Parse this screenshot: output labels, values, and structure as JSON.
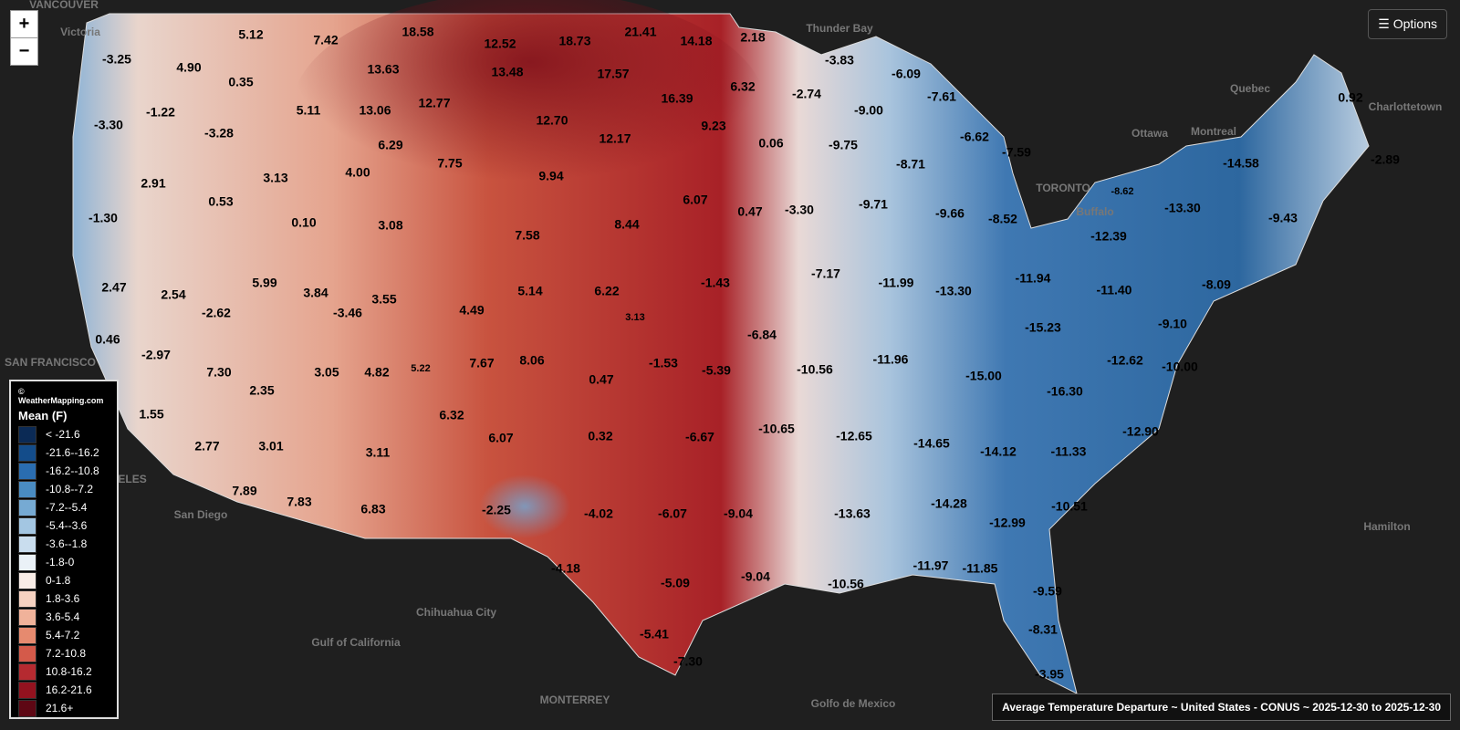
{
  "controls": {
    "zoom_in": "+",
    "zoom_out": "−",
    "options": "☰ Options"
  },
  "legend": {
    "credit": "© WeatherMapping.com",
    "title": "Mean (F)",
    "entries": [
      {
        "label": "< -21.6",
        "color": "#0b2a55"
      },
      {
        "label": "-21.6--16.2",
        "color": "#134c8a"
      },
      {
        "label": "-16.2--10.8",
        "color": "#2a6db0"
      },
      {
        "label": "-10.8--7.2",
        "color": "#4a8cc2"
      },
      {
        "label": "-7.2--5.4",
        "color": "#76aad3"
      },
      {
        "label": "-5.4--3.6",
        "color": "#a3c6e2"
      },
      {
        "label": "-3.6--1.8",
        "color": "#c9ddee"
      },
      {
        "label": "-1.8-0",
        "color": "#eaf1f7"
      },
      {
        "label": "0-1.8",
        "color": "#f8ece6"
      },
      {
        "label": "1.8-3.6",
        "color": "#f6d2c1"
      },
      {
        "label": "3.6-5.4",
        "color": "#f0b29a"
      },
      {
        "label": "5.4-7.2",
        "color": "#e68a6f"
      },
      {
        "label": "7.2-10.8",
        "color": "#d45a4a"
      },
      {
        "label": "10.8-16.2",
        "color": "#b52a30"
      },
      {
        "label": "16.2-21.6",
        "color": "#93121f"
      },
      {
        "label": "21.6+",
        "color": "#5e0714"
      }
    ]
  },
  "title": "Average Temperature Departure ~ United States - CONUS ~ 2025-12-30 to 2025-12-30",
  "places": [
    "VANCOUVER",
    "Victoria",
    "Thunder Bay",
    "Quebec",
    "Charlottetown",
    "Montreal",
    "Ottawa",
    "TORONTO",
    "Buffalo",
    "SAN FRANCISCO",
    "LOS ANGELES",
    "San Diego",
    "Chihuahua City",
    "Gulf of California",
    "MONTERREY",
    "Golfo de Mexico",
    "Hamilton"
  ],
  "stations": [
    "5.12",
    "7.42",
    "18.58",
    "12.52",
    "18.73",
    "21.41",
    "14.18",
    "2.18",
    "-3.25",
    "4.90",
    "13.63",
    "13.48",
    "17.57",
    "-3.83",
    "-6.09",
    "0.35",
    "6.32",
    "-2.74",
    "-7.61",
    "0.92",
    "-3.30",
    "-1.22",
    "5.11",
    "13.06",
    "12.77",
    "16.39",
    "-9.00",
    "-3.28",
    "12.70",
    "9.23",
    "-6.62",
    "6.29",
    "12.17",
    "0.06",
    "-9.75",
    "-7.59",
    "-14.58",
    "-2.89",
    "3.13",
    "4.00",
    "7.75",
    "-8.71",
    "2.91",
    "9.94",
    "-8.62",
    "0.53",
    "6.07",
    "0.47",
    "-3.30",
    "-9.71",
    "-9.66",
    "-8.52",
    "-13.30",
    "-9.43",
    "-1.30",
    "0.10",
    "3.08",
    "8.44",
    "7.58",
    "-12.39",
    "2.47",
    "2.54",
    "5.99",
    "3.84",
    "3.55",
    "5.14",
    "6.22",
    "-1.43",
    "-7.17",
    "-11.99",
    "-13.30",
    "-11.94",
    "-11.40",
    "-8.09",
    "-2.62",
    "-3.46",
    "4.49",
    "3.13",
    "-15.23",
    "-9.10",
    "0.46",
    "-6.84",
    "-2.97",
    "7.67",
    "8.06",
    "-1.53",
    "-11.96",
    "-12.62",
    "-10.00",
    "7.30",
    "3.05",
    "4.82",
    "5.22",
    "0.47",
    "-5.39",
    "-10.56",
    "-15.00",
    "2.35",
    "-16.30",
    "1.55",
    "6.32",
    "-10.65",
    "-12.65",
    "-14.65",
    "-14.12",
    "-11.33",
    "-12.90",
    "6.07",
    "0.32",
    "-6.67",
    "2.77",
    "3.01",
    "3.11",
    "-2.25",
    "-4.02",
    "-6.07",
    "-9.04",
    "-14.28",
    "-10.51",
    "7.89",
    "7.83",
    "6.83",
    "-13.63",
    "-12.99",
    "-4.18",
    "-5.09",
    "-9.04",
    "-10.56",
    "-11.97",
    "-11.85",
    "-9.59",
    "-5.41",
    "-8.31",
    "-7.30",
    "-3.95"
  ]
}
